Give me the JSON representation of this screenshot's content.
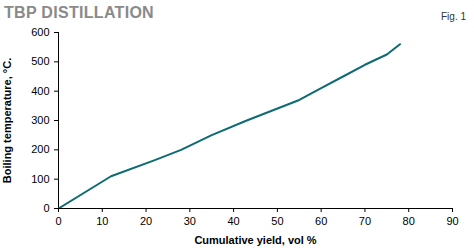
{
  "chart_data": {
    "type": "line",
    "title": "TBP DISTILLATION",
    "annotation": "Fig. 1",
    "x_label": "Cumulative yield, vol %",
    "y_label": "Boiling temperature, °C.",
    "x": [
      0,
      12,
      22,
      28,
      35,
      43,
      55,
      60,
      65,
      70,
      75,
      78
    ],
    "values": [
      0,
      110,
      165,
      200,
      250,
      300,
      370,
      410,
      450,
      490,
      525,
      560
    ],
    "color": "#0e6b73",
    "xlim": [
      0,
      90
    ],
    "xticks": [
      0,
      10,
      20,
      30,
      40,
      50,
      60,
      70,
      80,
      90
    ],
    "ylim": [
      0,
      600
    ],
    "yticks": [
      0,
      100,
      200,
      300,
      400,
      500,
      600
    ],
    "grid": false
  }
}
